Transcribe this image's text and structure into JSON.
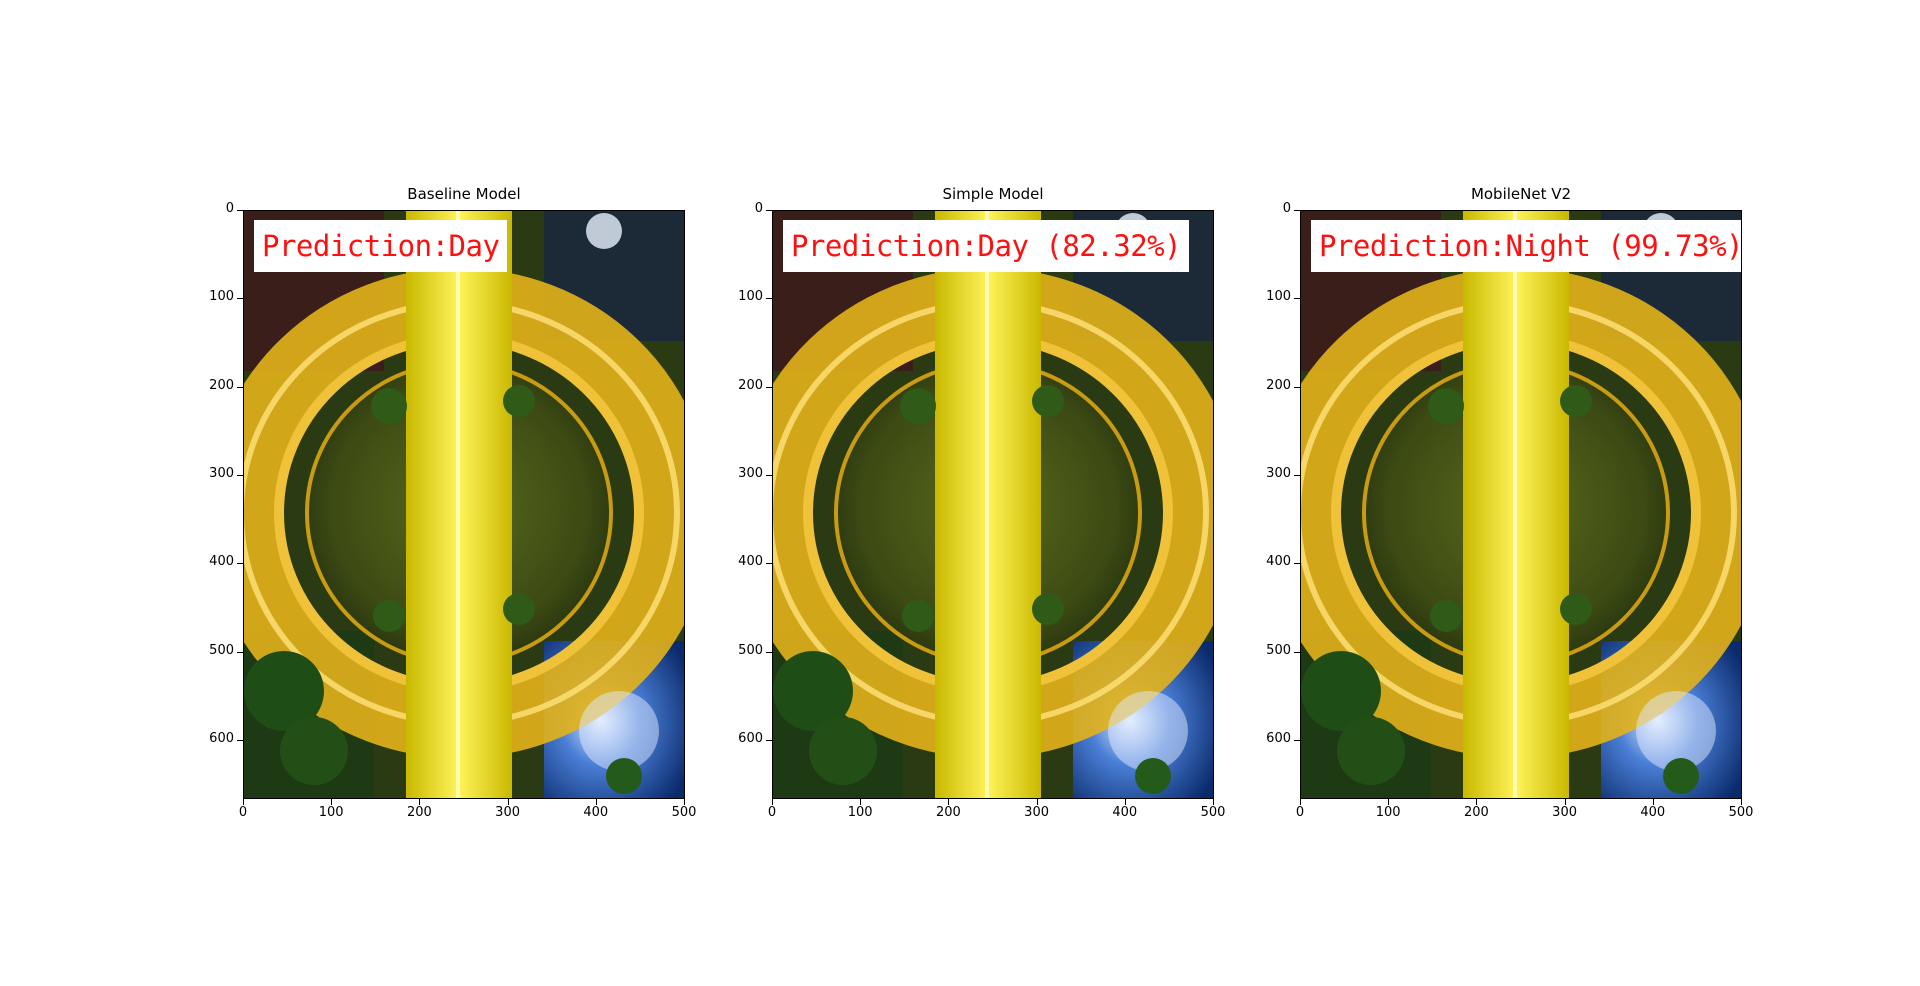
{
  "panels": [
    {
      "title": "Baseline Model",
      "prediction": "Prediction:Day"
    },
    {
      "title": "Simple Model",
      "prediction": "Prediction:Day (82.32%)"
    },
    {
      "title": "MobileNet V2",
      "prediction": "Prediction:Night (99.73%)"
    }
  ],
  "axes": {
    "y_ticks": [
      "0",
      "100",
      "200",
      "300",
      "400",
      "500",
      "600"
    ],
    "x_ticks": [
      "0",
      "100",
      "200",
      "300",
      "400",
      "500"
    ],
    "y_range": [
      0,
      667
    ],
    "x_range": [
      0,
      500
    ]
  },
  "colors": {
    "prediction_text": "#ff1010",
    "label_box": "#ffffff"
  }
}
